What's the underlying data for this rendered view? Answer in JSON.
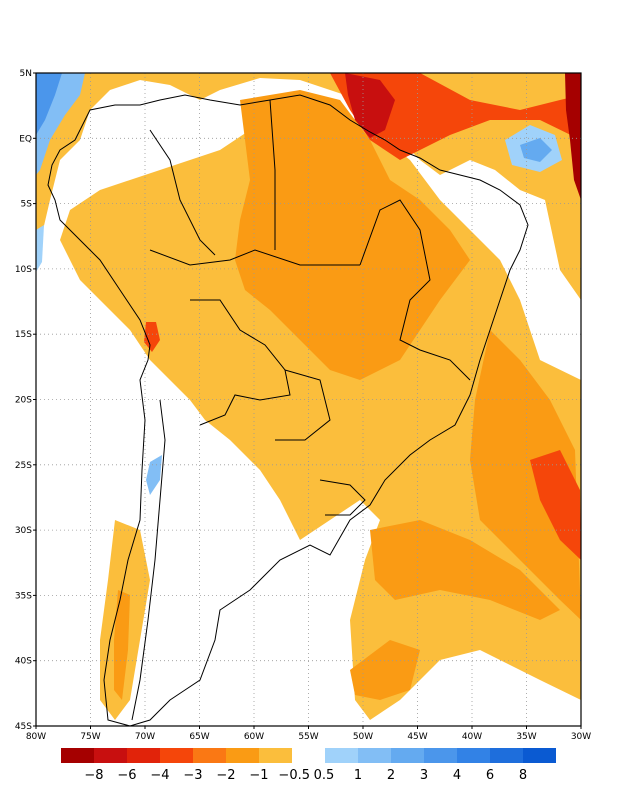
{
  "map": {
    "lat_ticks": [
      "5N",
      "EQ",
      "5S",
      "10S",
      "15S",
      "20S",
      "25S",
      "30S",
      "35S",
      "40S",
      "45S"
    ],
    "lon_ticks": [
      "80W",
      "75W",
      "70W",
      "65W",
      "60W",
      "55W",
      "50W",
      "45W",
      "40W",
      "35W",
      "30W"
    ],
    "extent": {
      "lon_min": -80,
      "lon_max": -30,
      "lat_min": -45,
      "lat_max": 5
    },
    "grid": "dotted"
  },
  "colorbar": {
    "negative": [
      {
        "color": "#a50000"
      },
      {
        "color": "#c80f0f"
      },
      {
        "color": "#e1230a"
      },
      {
        "color": "#f5460a"
      },
      {
        "color": "#fa7814"
      },
      {
        "color": "#fa9b14"
      },
      {
        "color": "#fbbe3c"
      }
    ],
    "positive": [
      {
        "color": "#a0d2fa"
      },
      {
        "color": "#82bef5"
      },
      {
        "color": "#64aaf0"
      },
      {
        "color": "#4b96eb"
      },
      {
        "color": "#3282e6"
      },
      {
        "color": "#1e6edc"
      },
      {
        "color": "#0a5ad2"
      }
    ],
    "labels": [
      "−8",
      "−6",
      "−4",
      "−3",
      "−2",
      "−1",
      "−0.5",
      "0.5",
      "1",
      "2",
      "3",
      "4",
      "6",
      "8"
    ]
  }
}
